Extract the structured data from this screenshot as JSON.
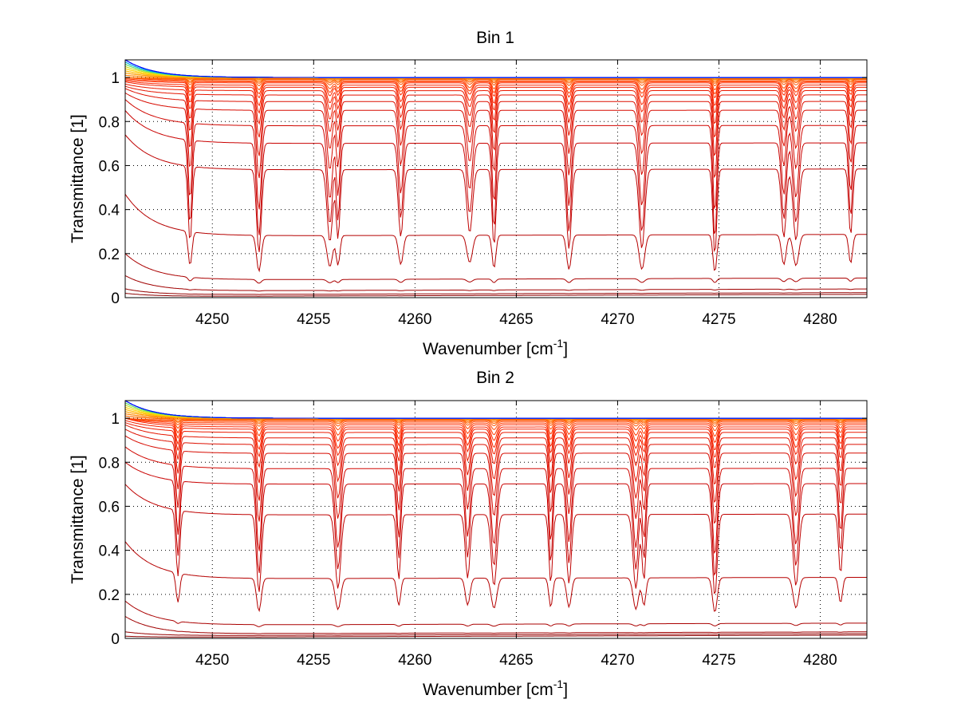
{
  "chart_data": [
    {
      "type": "line",
      "title": "Bin 1",
      "xlabel": "Wavenumber [cm",
      "xlabel_sup": "-1",
      "xlabel_close": "]",
      "ylabel": "Transmittance [1]",
      "xlim": [
        4245.7,
        4282.3
      ],
      "ylim": [
        0,
        1.08
      ],
      "xticks": [
        4250,
        4255,
        4260,
        4265,
        4270,
        4275,
        4280
      ],
      "xtick_labels": [
        "4250",
        "4255",
        "4260",
        "4265",
        "4270",
        "4275",
        "4280"
      ],
      "yticks": [
        0,
        0.2,
        0.4,
        0.6,
        0.8,
        1
      ],
      "ytick_labels": [
        "0",
        "0.2",
        "0.4",
        "0.6",
        "0.8",
        "1"
      ],
      "grid": true,
      "series_count": 40,
      "baseline_levels": [
        0.005,
        0.013,
        0.03,
        0.08,
        0.28,
        0.58,
        0.7,
        0.78,
        0.85,
        0.89,
        0.92,
        0.94,
        0.955,
        0.965,
        0.975,
        0.98,
        0.985,
        0.99,
        0.993,
        0.995,
        0.997,
        0.998,
        0.999,
        1.0,
        1.0,
        1.0,
        1.0,
        1.0,
        1.0,
        1.0,
        1.0,
        1.0,
        1.0,
        1.0,
        1.0,
        1.0,
        1.0,
        1.0,
        1.0,
        1.0
      ],
      "left_edge_levels": [
        0.02,
        0.04,
        0.1,
        0.2,
        0.47,
        0.74,
        0.85,
        0.9,
        0.93,
        0.95,
        0.96,
        0.97,
        0.98,
        0.985,
        0.99,
        0.995,
        1.0,
        1.0,
        1.0,
        1.0,
        1.01,
        1.01,
        1.02,
        1.02,
        1.03,
        1.03,
        1.04,
        1.04,
        1.05,
        1.05,
        1.06,
        1.06,
        1.06,
        1.07,
        1.07,
        1.07,
        1.08,
        1.08,
        1.08,
        1.08
      ],
      "absorption_lines": [
        {
          "x": 4248.9,
          "min": 0.45
        },
        {
          "x": 4252.3,
          "min": 0.38
        },
        {
          "x": 4255.8,
          "min": 0.46
        },
        {
          "x": 4256.2,
          "min": 0.49
        },
        {
          "x": 4259.3,
          "min": 0.5
        },
        {
          "x": 4262.7,
          "min": 0.53
        },
        {
          "x": 4263.9,
          "min": 0.43
        },
        {
          "x": 4267.6,
          "min": 0.41
        },
        {
          "x": 4271.2,
          "min": 0.41
        },
        {
          "x": 4274.8,
          "min": 0.36
        },
        {
          "x": 4278.2,
          "min": 0.49
        },
        {
          "x": 4278.8,
          "min": 0.47
        },
        {
          "x": 4281.5,
          "min": 0.51
        }
      ]
    },
    {
      "type": "line",
      "title": "Bin 2",
      "xlabel": "Wavenumber [cm",
      "xlabel_sup": "-1",
      "xlabel_close": "]",
      "ylabel": "Transmittance [1]",
      "xlim": [
        4245.7,
        4282.3
      ],
      "ylim": [
        0,
        1.08
      ],
      "xticks": [
        4250,
        4255,
        4260,
        4265,
        4270,
        4275,
        4280
      ],
      "xtick_labels": [
        "4250",
        "4255",
        "4260",
        "4265",
        "4270",
        "4275",
        "4280"
      ],
      "yticks": [
        0,
        0.2,
        0.4,
        0.6,
        0.8,
        1
      ],
      "ytick_labels": [
        "0",
        "0.2",
        "0.4",
        "0.6",
        "0.8",
        "1"
      ],
      "grid": true,
      "series_count": 40,
      "baseline_levels": [
        0.005,
        0.012,
        0.02,
        0.06,
        0.27,
        0.56,
        0.7,
        0.77,
        0.84,
        0.88,
        0.91,
        0.935,
        0.95,
        0.96,
        0.97,
        0.978,
        0.985,
        0.99,
        0.993,
        0.995,
        0.997,
        0.998,
        0.999,
        1.0,
        1.0,
        1.0,
        1.0,
        1.0,
        1.0,
        1.0,
        1.0,
        1.0,
        1.0,
        1.0,
        1.0,
        1.0,
        1.0,
        1.0,
        1.0,
        1.0
      ],
      "left_edge_levels": [
        0.01,
        0.03,
        0.1,
        0.17,
        0.44,
        0.7,
        0.8,
        0.87,
        0.92,
        0.95,
        0.97,
        0.98,
        0.99,
        1.0,
        1.0,
        1.0,
        1.0,
        1.0,
        1.01,
        1.01,
        1.02,
        1.02,
        1.03,
        1.03,
        1.04,
        1.04,
        1.05,
        1.05,
        1.06,
        1.06,
        1.07,
        1.07,
        1.07,
        1.08,
        1.08,
        1.08,
        1.08,
        1.08,
        1.08,
        1.08
      ],
      "absorption_lines": [
        {
          "x": 4248.3,
          "min": 0.51
        },
        {
          "x": 4252.3,
          "min": 0.4
        },
        {
          "x": 4256.2,
          "min": 0.43
        },
        {
          "x": 4259.2,
          "min": 0.5
        },
        {
          "x": 4262.6,
          "min": 0.51
        },
        {
          "x": 4263.9,
          "min": 0.45
        },
        {
          "x": 4266.7,
          "min": 0.47
        },
        {
          "x": 4267.6,
          "min": 0.47
        },
        {
          "x": 4270.9,
          "min": 0.43
        },
        {
          "x": 4271.3,
          "min": 0.5
        },
        {
          "x": 4274.8,
          "min": 0.37
        },
        {
          "x": 4278.8,
          "min": 0.45
        },
        {
          "x": 4281.0,
          "min": 0.54
        }
      ]
    }
  ],
  "colors": {
    "grid": "#000000",
    "axes": "#000000",
    "text": "#000000",
    "low_curve": "#8b0000",
    "mid_curve": "#ff3000",
    "high_curve": "#ff9900",
    "top_curve": "#0000ff"
  }
}
